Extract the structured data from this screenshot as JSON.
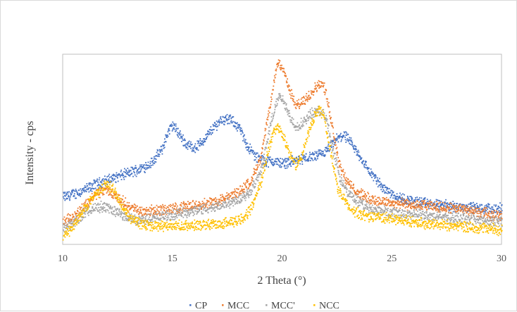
{
  "chart_data": {
    "type": "scatter",
    "title": "",
    "xlabel": "2 Theta (°)",
    "ylabel": "Intensity - cps",
    "xlim": [
      10,
      30
    ],
    "xticks": [
      "10",
      "15",
      "20",
      "25",
      "30"
    ],
    "yticks_visible": false,
    "grid": false,
    "legend": "bottom",
    "series": [
      {
        "name": "CP",
        "color": "#4472C4",
        "x": [
          10,
          10.5,
          11,
          11.5,
          12,
          12.5,
          13,
          13.5,
          14,
          14.5,
          14.8,
          15,
          15.3,
          15.6,
          16,
          16.4,
          16.8,
          17.2,
          17.6,
          18,
          18.4,
          18.8,
          19.2,
          19.6,
          20,
          20.4,
          20.8,
          21.2,
          21.6,
          22,
          22.4,
          22.8,
          23.2,
          23.6,
          24,
          24.5,
          25,
          25.5,
          26,
          26.5,
          27,
          27.5,
          28,
          28.5,
          29,
          29.5,
          30
        ],
        "y": [
          0.25,
          0.27,
          0.29,
          0.32,
          0.34,
          0.36,
          0.38,
          0.4,
          0.43,
          0.5,
          0.6,
          0.63,
          0.58,
          0.53,
          0.51,
          0.55,
          0.61,
          0.66,
          0.66,
          0.62,
          0.52,
          0.46,
          0.44,
          0.44,
          0.43,
          0.44,
          0.45,
          0.46,
          0.47,
          0.49,
          0.55,
          0.58,
          0.52,
          0.45,
          0.38,
          0.31,
          0.27,
          0.24,
          0.23,
          0.22,
          0.21,
          0.21,
          0.2,
          0.2,
          0.19,
          0.19,
          0.19
        ]
      },
      {
        "name": "MCC",
        "color": "#ED7D31",
        "x": [
          10,
          10.5,
          11,
          11.5,
          12,
          12.5,
          13,
          13.5,
          14,
          15,
          16,
          17,
          17.5,
          18,
          18.5,
          19,
          19.3,
          19.6,
          19.8,
          20,
          20.3,
          20.6,
          20.9,
          21.2,
          21.5,
          21.8,
          22,
          22.3,
          22.6,
          23,
          23.5,
          24,
          25,
          26,
          27,
          28,
          29,
          30
        ],
        "y": [
          0.12,
          0.15,
          0.21,
          0.27,
          0.29,
          0.25,
          0.2,
          0.18,
          0.18,
          0.19,
          0.21,
          0.23,
          0.25,
          0.28,
          0.33,
          0.45,
          0.65,
          0.85,
          0.97,
          0.93,
          0.82,
          0.73,
          0.75,
          0.79,
          0.83,
          0.85,
          0.79,
          0.6,
          0.42,
          0.32,
          0.27,
          0.24,
          0.22,
          0.21,
          0.2,
          0.19,
          0.17,
          0.15
        ]
      },
      {
        "name": "MCC'",
        "color": "#A5A5A5",
        "x": [
          10,
          10.5,
          11,
          11.5,
          12,
          12.5,
          13,
          13.5,
          14,
          15,
          16,
          17,
          17.5,
          18,
          18.5,
          19,
          19.3,
          19.6,
          19.8,
          20,
          20.3,
          20.6,
          20.9,
          21.2,
          21.5,
          21.8,
          22,
          22.3,
          22.6,
          23,
          23.5,
          24,
          25,
          26,
          27,
          28,
          29,
          30
        ],
        "y": [
          0.09,
          0.12,
          0.17,
          0.2,
          0.2,
          0.17,
          0.14,
          0.13,
          0.14,
          0.16,
          0.18,
          0.2,
          0.22,
          0.24,
          0.28,
          0.38,
          0.55,
          0.71,
          0.78,
          0.76,
          0.68,
          0.62,
          0.64,
          0.68,
          0.7,
          0.7,
          0.66,
          0.5,
          0.35,
          0.27,
          0.22,
          0.19,
          0.17,
          0.16,
          0.15,
          0.14,
          0.13,
          0.12
        ]
      },
      {
        "name": "NCC",
        "color": "#FFC000",
        "x": [
          10,
          10.5,
          11,
          11.5,
          12,
          12.3,
          12.6,
          13,
          13.5,
          14,
          15,
          16,
          17,
          18,
          18.5,
          19,
          19.3,
          19.6,
          19.8,
          20,
          20.3,
          20.6,
          20.9,
          21.2,
          21.5,
          21.7,
          21.9,
          22.2,
          22.5,
          23,
          23.5,
          24,
          25,
          26,
          27,
          28,
          29,
          30
        ],
        "y": [
          0.05,
          0.1,
          0.2,
          0.27,
          0.32,
          0.29,
          0.22,
          0.15,
          0.11,
          0.1,
          0.1,
          0.1,
          0.11,
          0.13,
          0.18,
          0.32,
          0.48,
          0.6,
          0.63,
          0.58,
          0.48,
          0.42,
          0.47,
          0.6,
          0.69,
          0.71,
          0.67,
          0.48,
          0.3,
          0.2,
          0.16,
          0.15,
          0.14,
          0.12,
          0.11,
          0.1,
          0.09,
          0.08
        ]
      }
    ]
  }
}
